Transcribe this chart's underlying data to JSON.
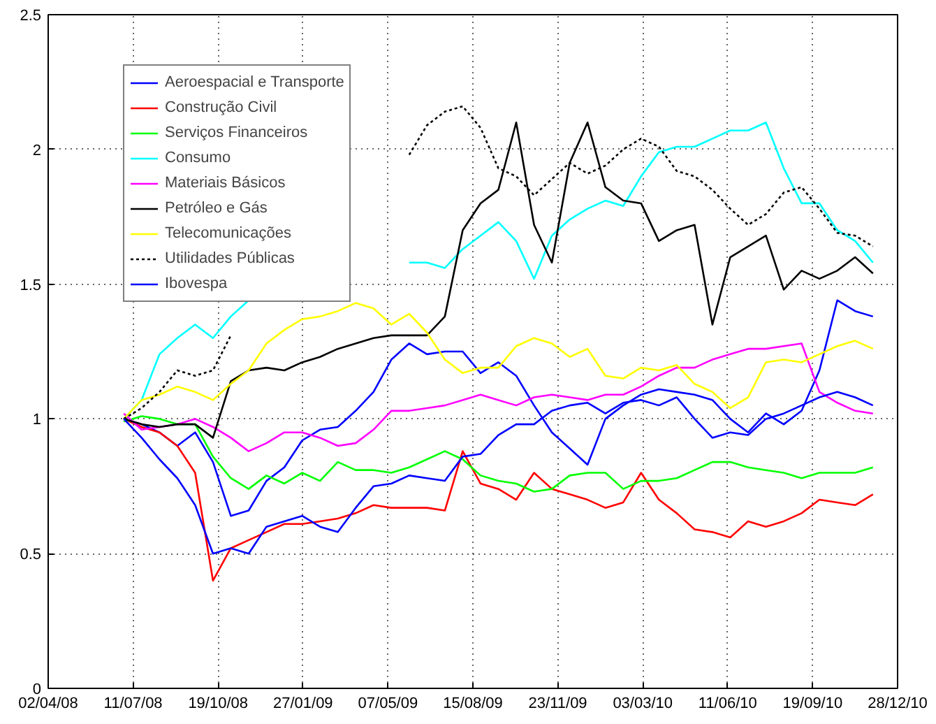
{
  "chart_data": {
    "type": "line",
    "x": [
      "2008-06-30",
      "2008-07-21",
      "2008-08-11",
      "2008-09-01",
      "2008-09-22",
      "2008-10-13",
      "2008-11-03",
      "2008-11-24",
      "2008-12-15",
      "2009-01-05",
      "2009-01-26",
      "2009-02-16",
      "2009-03-09",
      "2009-03-30",
      "2009-04-20",
      "2009-05-11",
      "2009-06-01",
      "2009-06-22",
      "2009-07-13",
      "2009-08-03",
      "2009-08-24",
      "2009-09-14",
      "2009-10-05",
      "2009-10-26",
      "2009-11-16",
      "2009-12-07",
      "2009-12-28",
      "2010-01-18",
      "2010-02-08",
      "2010-03-01",
      "2010-03-22",
      "2010-04-12",
      "2010-05-03",
      "2010-05-24",
      "2010-06-14",
      "2010-07-05",
      "2010-07-26",
      "2010-08-16",
      "2010-09-06",
      "2010-09-27",
      "2010-10-18",
      "2010-11-08",
      "2010-11-29"
    ],
    "series": [
      {
        "name": "Aeroespacial e Transporte",
        "color": "#0000ff",
        "values": [
          1.0,
          0.98,
          0.95,
          0.9,
          0.95,
          0.84,
          0.64,
          0.66,
          0.77,
          0.82,
          0.92,
          0.96,
          0.97,
          1.03,
          1.1,
          1.22,
          1.28,
          1.24,
          1.25,
          1.25,
          1.17,
          1.21,
          1.16,
          1.05,
          0.95,
          0.89,
          0.83,
          1.0,
          1.05,
          1.09,
          1.11,
          1.1,
          1.09,
          1.07,
          1.0,
          0.95,
          1.02,
          0.98,
          1.03,
          1.18,
          1.44,
          1.4,
          1.38
        ]
      },
      {
        "name": "Construção Civil",
        "color": "#ff0000",
        "values": [
          1.0,
          0.97,
          0.95,
          0.9,
          0.8,
          0.4,
          0.52,
          0.55,
          0.58,
          0.61,
          0.61,
          0.62,
          0.63,
          0.65,
          0.68,
          0.67,
          0.67,
          0.67,
          0.66,
          0.88,
          0.76,
          0.74,
          0.7,
          0.8,
          0.74,
          0.72,
          0.7,
          0.67,
          0.69,
          0.8,
          0.7,
          0.65,
          0.59,
          0.58,
          0.56,
          0.62,
          0.6,
          0.62,
          0.65,
          0.7,
          0.69,
          0.68,
          0.72
        ]
      },
      {
        "name": "Serviços Financeiros",
        "color": "#00ff00",
        "values": [
          0.99,
          1.01,
          1.0,
          0.98,
          0.98,
          0.86,
          0.78,
          0.74,
          0.79,
          0.76,
          0.8,
          0.77,
          0.84,
          0.81,
          0.81,
          0.8,
          0.82,
          0.85,
          0.88,
          0.85,
          0.79,
          0.77,
          0.76,
          0.73,
          0.74,
          0.79,
          0.8,
          0.8,
          0.74,
          0.77,
          0.77,
          0.78,
          0.81,
          0.84,
          0.84,
          0.82,
          0.81,
          0.8,
          0.78,
          0.8,
          0.8,
          0.8,
          0.82
        ]
      },
      {
        "name": "Consumo",
        "color": "#00ffff",
        "values": [
          1.0,
          1.07,
          1.24,
          1.3,
          1.35,
          1.3,
          1.38,
          1.44,
          null,
          null,
          null,
          null,
          null,
          null,
          null,
          null,
          1.58,
          1.58,
          1.56,
          1.63,
          1.68,
          1.73,
          1.66,
          1.52,
          1.68,
          1.74,
          1.78,
          1.81,
          1.79,
          1.9,
          1.99,
          2.01,
          2.01,
          2.04,
          2.07,
          2.07,
          2.1,
          1.93,
          1.8,
          1.8,
          1.7,
          1.66,
          1.58
        ]
      },
      {
        "name": "Materiais Básicos",
        "color": "#ff00ff",
        "values": [
          1.02,
          0.96,
          0.97,
          0.98,
          1.0,
          0.97,
          0.93,
          0.88,
          0.91,
          0.95,
          0.95,
          0.93,
          0.9,
          0.91,
          0.96,
          1.03,
          1.03,
          1.04,
          1.05,
          1.07,
          1.09,
          1.07,
          1.05,
          1.08,
          1.09,
          1.08,
          1.07,
          1.09,
          1.09,
          1.12,
          1.16,
          1.19,
          1.19,
          1.22,
          1.24,
          1.26,
          1.26,
          1.27,
          1.28,
          1.1,
          1.06,
          1.03,
          1.02
        ]
      },
      {
        "name": "Petróleo e Gás",
        "color": "#000000",
        "values": [
          1.0,
          0.98,
          0.97,
          0.98,
          0.98,
          0.93,
          1.14,
          1.18,
          1.19,
          1.18,
          1.21,
          1.23,
          1.26,
          1.28,
          1.3,
          1.31,
          1.31,
          1.31,
          1.38,
          1.7,
          1.8,
          1.85,
          2.1,
          1.72,
          1.58,
          1.95,
          2.1,
          1.86,
          1.81,
          1.8,
          1.66,
          1.7,
          1.72,
          1.35,
          1.6,
          1.64,
          1.68,
          1.48,
          1.55,
          1.52,
          1.55,
          1.6,
          1.54
        ]
      },
      {
        "name": "Telecomunicações",
        "color": "#ffff00",
        "values": [
          1.0,
          1.07,
          1.09,
          1.12,
          1.1,
          1.07,
          1.13,
          1.18,
          1.28,
          1.33,
          1.37,
          1.38,
          1.4,
          1.43,
          1.41,
          1.35,
          1.39,
          1.32,
          1.22,
          1.17,
          1.19,
          1.19,
          1.27,
          1.3,
          1.28,
          1.23,
          1.26,
          1.16,
          1.15,
          1.19,
          1.18,
          1.2,
          1.13,
          1.1,
          1.04,
          1.08,
          1.21,
          1.22,
          1.21,
          1.24,
          1.27,
          1.29,
          1.26
        ]
      },
      {
        "name": "Utilidades Públicas",
        "color": "#000000",
        "line_style": "dotted",
        "values": [
          1.0,
          1.04,
          1.1,
          1.18,
          1.16,
          1.18,
          1.31,
          null,
          null,
          null,
          null,
          null,
          null,
          null,
          null,
          null,
          1.98,
          2.09,
          2.14,
          2.16,
          2.08,
          1.93,
          1.9,
          1.83,
          1.89,
          1.95,
          1.91,
          1.94,
          2.0,
          2.04,
          2.01,
          1.92,
          1.9,
          1.85,
          1.78,
          1.72,
          1.76,
          1.84,
          1.86,
          1.78,
          1.69,
          1.68,
          1.64
        ]
      },
      {
        "name": "Ibovespa",
        "color": "#0000ff",
        "values": [
          1.0,
          0.93,
          0.85,
          0.78,
          0.68,
          0.5,
          0.52,
          0.5,
          0.6,
          0.62,
          0.64,
          0.6,
          0.58,
          0.67,
          0.75,
          0.76,
          0.79,
          0.78,
          0.77,
          0.86,
          0.87,
          0.94,
          0.98,
          0.98,
          1.03,
          1.05,
          1.06,
          1.02,
          1.06,
          1.07,
          1.05,
          1.08,
          1.0,
          0.93,
          0.95,
          0.94,
          1.0,
          1.02,
          1.05,
          1.08,
          1.1,
          1.08,
          1.05
        ]
      }
    ],
    "xlim": [
      "2008-04-02",
      "2010-12-28"
    ],
    "xticks": [
      {
        "value": "2008-04-02",
        "label": "02/04/08"
      },
      {
        "value": "2008-07-11",
        "label": "11/07/08"
      },
      {
        "value": "2008-10-19",
        "label": "19/10/08"
      },
      {
        "value": "2009-01-27",
        "label": "27/01/09"
      },
      {
        "value": "2009-05-07",
        "label": "07/05/09"
      },
      {
        "value": "2009-08-15",
        "label": "15/08/09"
      },
      {
        "value": "2009-11-23",
        "label": "23/11/09"
      },
      {
        "value": "2010-03-03",
        "label": "03/03/10"
      },
      {
        "value": "2010-06-11",
        "label": "11/06/10"
      },
      {
        "value": "2010-09-19",
        "label": "19/09/10"
      },
      {
        "value": "2010-12-28",
        "label": "28/12/10"
      }
    ],
    "ylim": [
      0,
      2.5
    ],
    "yticks": [
      0,
      0.5,
      1,
      1.5,
      2,
      2.5
    ],
    "grid": true,
    "legend": "top left",
    "line_style": "solid",
    "marker": "none"
  }
}
